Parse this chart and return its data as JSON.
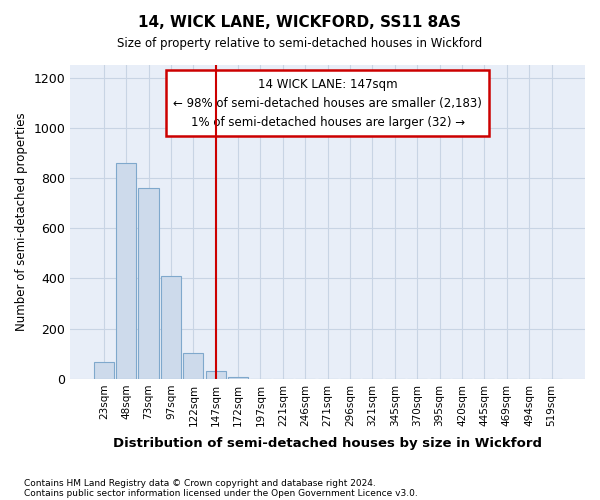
{
  "title": "14, WICK LANE, WICKFORD, SS11 8AS",
  "subtitle": "Size of property relative to semi-detached houses in Wickford",
  "xlabel": "Distribution of semi-detached houses by size in Wickford",
  "ylabel": "Number of semi-detached properties",
  "footnote1": "Contains HM Land Registry data © Crown copyright and database right 2024.",
  "footnote2": "Contains public sector information licensed under the Open Government Licence v3.0.",
  "annotation_title": "14 WICK LANE: 147sqm",
  "annotation_line1": "← 98% of semi-detached houses are smaller (2,183)",
  "annotation_line2": "1% of semi-detached houses are larger (32) →",
  "bar_color": "#cddaeb",
  "bar_edge_color": "#7fa8cc",
  "highlight_color": "#cc0000",
  "grid_color": "#c8d4e4",
  "background_color": "#e8eef8",
  "categories": [
    "23sqm",
    "48sqm",
    "73sqm",
    "97sqm",
    "122sqm",
    "147sqm",
    "172sqm",
    "197sqm",
    "221sqm",
    "246sqm",
    "271sqm",
    "296sqm",
    "321sqm",
    "345sqm",
    "370sqm",
    "395sqm",
    "420sqm",
    "445sqm",
    "469sqm",
    "494sqm",
    "519sqm"
  ],
  "values": [
    68,
    858,
    762,
    410,
    103,
    30,
    7,
    0,
    0,
    0,
    0,
    0,
    0,
    0,
    0,
    0,
    0,
    0,
    0,
    0,
    0
  ],
  "highlight_index": 5,
  "ylim": [
    0,
    1250
  ],
  "yticks": [
    0,
    200,
    400,
    600,
    800,
    1000,
    1200
  ],
  "figsize": [
    6.0,
    5.0
  ],
  "dpi": 100
}
